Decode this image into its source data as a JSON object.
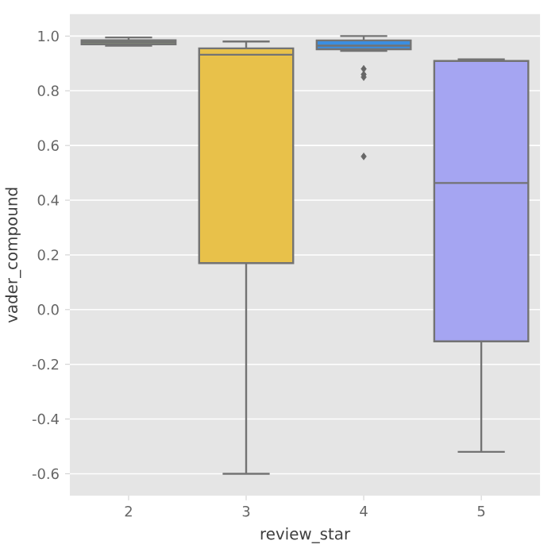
{
  "chart_data": {
    "type": "box",
    "xlabel": "review_star",
    "ylabel": "vader_compound",
    "categories": [
      "2",
      "3",
      "4",
      "5"
    ],
    "colors": [
      "#8c9c78",
      "#e8c14a",
      "#3b8ee0",
      "#a5a5f2"
    ],
    "boxes": [
      {
        "low": 0.965,
        "q1": 0.97,
        "median": 0.978,
        "q3": 0.985,
        "high": 0.995
      },
      {
        "low": -0.6,
        "q1": 0.17,
        "median": 0.932,
        "q3": 0.955,
        "high": 0.98
      },
      {
        "low": 0.946,
        "q1": 0.952,
        "median": 0.965,
        "q3": 0.984,
        "high": 1.0,
        "outliers": [
          0.88,
          0.86,
          0.85,
          0.56
        ]
      },
      {
        "low": -0.52,
        "q1": -0.116,
        "median": 0.463,
        "q3": 0.909,
        "high": 0.915
      }
    ],
    "ylim": [
      -0.68,
      1.08
    ],
    "yticks": [
      -0.6,
      -0.4,
      -0.2,
      {
        "value": 0,
        "label": "0.0"
      },
      0.2,
      0.4,
      0.6,
      0.8,
      {
        "value": 1,
        "label": "1.0"
      }
    ],
    "grid": "y",
    "marker": "diamond"
  }
}
